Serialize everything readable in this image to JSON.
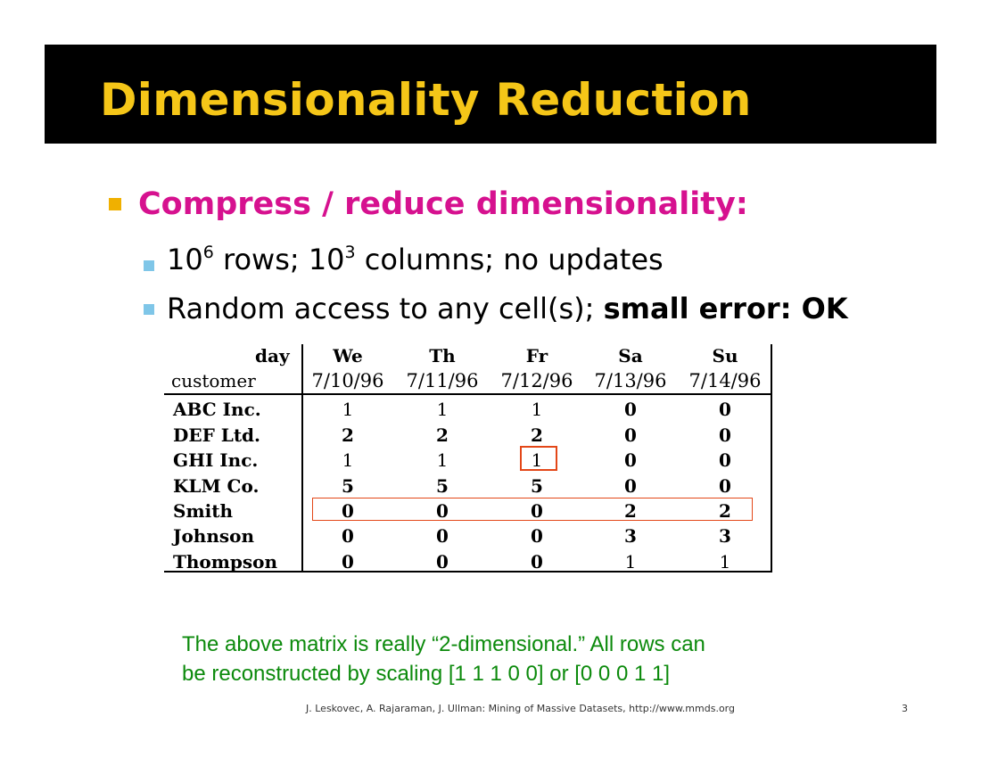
{
  "title": "Dimensionality Reduction",
  "bullet1": "Compress / reduce dimensionality:",
  "sub1": {
    "base1": "10",
    "exp1": "6",
    "mid": " rows; 10",
    "exp2": "3",
    "tail": " columns; no updates"
  },
  "sub2": {
    "text": "Random access to any cell(s); ",
    "bold": "small error: OK"
  },
  "matrix": {
    "corner_day": "day",
    "corner_customer": "customer",
    "days": [
      "We",
      "Th",
      "Fr",
      "Sa",
      "Su"
    ],
    "dates": [
      "7/10/96",
      "7/11/96",
      "7/12/96",
      "7/13/96",
      "7/14/96"
    ],
    "rows": [
      {
        "name": "ABC Inc.",
        "values": [
          "1",
          "1",
          "1",
          "0",
          "0"
        ]
      },
      {
        "name": "DEF Ltd.",
        "values": [
          "2",
          "2",
          "2",
          "0",
          "0"
        ]
      },
      {
        "name": "GHI Inc.",
        "values": [
          "1",
          "1",
          "1",
          "0",
          "0"
        ]
      },
      {
        "name": "KLM Co.",
        "values": [
          "5",
          "5",
          "5",
          "0",
          "0"
        ]
      },
      {
        "name": "Smith",
        "values": [
          "0",
          "0",
          "0",
          "2",
          "2"
        ]
      },
      {
        "name": "Johnson",
        "values": [
          "0",
          "0",
          "0",
          "3",
          "3"
        ]
      },
      {
        "name": "Thompson",
        "values": [
          "0",
          "0",
          "0",
          "1",
          "1"
        ]
      }
    ],
    "highlight_color": "#e34718"
  },
  "note_line1": "The above matrix is really “2-dimensional.” All rows can",
  "note_line2": "be reconstructed by scaling [1 1 1 0 0] or [0 0 0 1 1]",
  "footer": "J. Leskovec, A. Rajaraman, J. Ullman: Mining of Massive Datasets, http://www.mmds.org",
  "page_number": "3"
}
